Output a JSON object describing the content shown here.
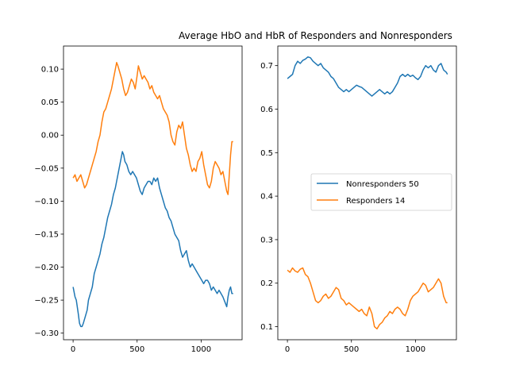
{
  "chart_data": [
    {
      "type": "line",
      "title": "",
      "xlabel": "",
      "ylabel": "",
      "xlim": [
        -75,
        1320
      ],
      "ylim": [
        -0.31,
        0.135
      ],
      "x_ticks": [
        0,
        500,
        1000
      ],
      "x_tick_labels": [
        "0",
        "500",
        "1000"
      ],
      "y_ticks": [
        -0.3,
        -0.25,
        -0.2,
        -0.15,
        -0.1,
        -0.05,
        0.0,
        0.05,
        0.1
      ],
      "y_tick_labels": [
        "−0.30",
        "−0.25",
        "−0.20",
        "−0.15",
        "−0.10",
        "−0.05",
        "0.00",
        "0.05",
        "0.10"
      ],
      "grid": false,
      "series": [
        {
          "color": "#1f77b4",
          "x": [
            0,
            15,
            25,
            40,
            50,
            60,
            70,
            80,
            95,
            110,
            120,
            135,
            150,
            165,
            180,
            195,
            210,
            225,
            240,
            255,
            270,
            285,
            300,
            315,
            330,
            345,
            360,
            375,
            385,
            395,
            405,
            420,
            435,
            450,
            465,
            480,
            495,
            510,
            525,
            540,
            555,
            570,
            585,
            600,
            615,
            630,
            645,
            660,
            675,
            690,
            705,
            720,
            735,
            750,
            765,
            780,
            795,
            810,
            825,
            840,
            855,
            870,
            885,
            900,
            915,
            930,
            945,
            960,
            975,
            990,
            1005,
            1020,
            1035,
            1050,
            1065,
            1080,
            1095,
            1110,
            1125,
            1140,
            1155,
            1170,
            1180,
            1190,
            1200,
            1210,
            1220,
            1230,
            1240,
            1250
          ],
          "y": [
            -0.23,
            -0.245,
            -0.25,
            -0.27,
            -0.285,
            -0.29,
            -0.29,
            -0.285,
            -0.275,
            -0.265,
            -0.25,
            -0.24,
            -0.23,
            -0.21,
            -0.2,
            -0.19,
            -0.18,
            -0.165,
            -0.155,
            -0.14,
            -0.125,
            -0.115,
            -0.105,
            -0.09,
            -0.08,
            -0.065,
            -0.05,
            -0.035,
            -0.025,
            -0.03,
            -0.04,
            -0.045,
            -0.055,
            -0.06,
            -0.055,
            -0.06,
            -0.065,
            -0.075,
            -0.085,
            -0.09,
            -0.08,
            -0.075,
            -0.07,
            -0.07,
            -0.075,
            -0.065,
            -0.07,
            -0.065,
            -0.08,
            -0.09,
            -0.1,
            -0.11,
            -0.115,
            -0.125,
            -0.13,
            -0.14,
            -0.15,
            -0.155,
            -0.16,
            -0.175,
            -0.185,
            -0.18,
            -0.175,
            -0.19,
            -0.2,
            -0.195,
            -0.2,
            -0.205,
            -0.21,
            -0.215,
            -0.22,
            -0.225,
            -0.22,
            -0.22,
            -0.225,
            -0.235,
            -0.23,
            -0.235,
            -0.24,
            -0.235,
            -0.24,
            -0.245,
            -0.25,
            -0.255,
            -0.26,
            -0.245,
            -0.235,
            -0.23,
            -0.24,
            -0.24
          ]
        },
        {
          "color": "#ff7f0e",
          "x": [
            0,
            15,
            30,
            45,
            60,
            75,
            90,
            105,
            120,
            135,
            150,
            165,
            180,
            195,
            210,
            225,
            240,
            255,
            270,
            285,
            300,
            315,
            330,
            340,
            350,
            365,
            380,
            395,
            410,
            425,
            440,
            455,
            470,
            485,
            500,
            510,
            525,
            540,
            555,
            570,
            585,
            600,
            615,
            630,
            645,
            660,
            675,
            690,
            705,
            720,
            735,
            750,
            765,
            780,
            795,
            810,
            825,
            840,
            855,
            870,
            885,
            900,
            915,
            930,
            945,
            960,
            975,
            990,
            1005,
            1020,
            1035,
            1050,
            1065,
            1080,
            1095,
            1110,
            1125,
            1140,
            1155,
            1170,
            1180,
            1190,
            1200,
            1210,
            1220,
            1230,
            1240,
            1250
          ],
          "y": [
            -0.065,
            -0.06,
            -0.07,
            -0.065,
            -0.06,
            -0.07,
            -0.08,
            -0.075,
            -0.065,
            -0.055,
            -0.045,
            -0.035,
            -0.025,
            -0.01,
            0.0,
            0.02,
            0.035,
            0.04,
            0.05,
            0.06,
            0.07,
            0.085,
            0.1,
            0.11,
            0.105,
            0.095,
            0.085,
            0.07,
            0.06,
            0.065,
            0.075,
            0.085,
            0.08,
            0.07,
            0.09,
            0.105,
            0.095,
            0.085,
            0.09,
            0.085,
            0.08,
            0.07,
            0.075,
            0.065,
            0.06,
            0.055,
            0.06,
            0.05,
            0.04,
            0.035,
            0.03,
            0.02,
            0.0,
            -0.01,
            -0.015,
            0.005,
            0.015,
            0.01,
            0.02,
            0.0,
            -0.02,
            -0.03,
            -0.045,
            -0.055,
            -0.05,
            -0.055,
            -0.04,
            -0.035,
            -0.025,
            -0.045,
            -0.06,
            -0.075,
            -0.08,
            -0.07,
            -0.05,
            -0.04,
            -0.045,
            -0.05,
            -0.06,
            -0.055,
            -0.065,
            -0.075,
            -0.085,
            -0.09,
            -0.06,
            -0.03,
            -0.01,
            -0.01
          ]
        }
      ]
    },
    {
      "type": "line",
      "title": "Average HbO and HbR of Responders and Nonresponders",
      "xlabel": "",
      "ylabel": "",
      "xlim": [
        -75,
        1320
      ],
      "ylim": [
        0.07,
        0.745
      ],
      "x_ticks": [
        0,
        500,
        1000
      ],
      "x_tick_labels": [
        "0",
        "500",
        "1000"
      ],
      "y_ticks": [
        0.1,
        0.2,
        0.3,
        0.4,
        0.5,
        0.6,
        0.7
      ],
      "y_tick_labels": [
        "0.1",
        "0.2",
        "0.3",
        "0.4",
        "0.5",
        "0.6",
        "0.7"
      ],
      "grid": false,
      "legend": {
        "placement": "center-right",
        "entries": [
          "Nonresponders 50",
          "Responders 14"
        ]
      },
      "series": [
        {
          "name": "Nonresponders 50",
          "color": "#1f77b4",
          "x": [
            0,
            20,
            40,
            60,
            80,
            100,
            120,
            140,
            160,
            180,
            200,
            220,
            240,
            260,
            280,
            300,
            320,
            340,
            360,
            380,
            400,
            420,
            440,
            460,
            480,
            500,
            520,
            540,
            560,
            580,
            600,
            620,
            640,
            660,
            680,
            700,
            720,
            740,
            760,
            780,
            800,
            820,
            840,
            860,
            880,
            900,
            920,
            940,
            960,
            980,
            1000,
            1020,
            1040,
            1060,
            1080,
            1100,
            1120,
            1140,
            1160,
            1180,
            1200,
            1220,
            1240,
            1250
          ],
          "y": [
            0.67,
            0.675,
            0.68,
            0.7,
            0.71,
            0.705,
            0.712,
            0.715,
            0.72,
            0.718,
            0.71,
            0.705,
            0.7,
            0.705,
            0.695,
            0.69,
            0.685,
            0.675,
            0.67,
            0.66,
            0.65,
            0.645,
            0.64,
            0.645,
            0.64,
            0.645,
            0.65,
            0.655,
            0.652,
            0.65,
            0.645,
            0.64,
            0.635,
            0.63,
            0.635,
            0.64,
            0.645,
            0.64,
            0.635,
            0.64,
            0.635,
            0.64,
            0.65,
            0.66,
            0.675,
            0.68,
            0.675,
            0.68,
            0.675,
            0.678,
            0.672,
            0.668,
            0.675,
            0.69,
            0.7,
            0.695,
            0.7,
            0.69,
            0.685,
            0.7,
            0.705,
            0.69,
            0.685,
            0.68
          ]
        },
        {
          "name": "Responders 14",
          "color": "#ff7f0e",
          "x": [
            0,
            20,
            40,
            60,
            80,
            100,
            120,
            140,
            160,
            180,
            200,
            220,
            240,
            260,
            280,
            300,
            320,
            340,
            360,
            380,
            400,
            420,
            440,
            460,
            480,
            500,
            520,
            540,
            560,
            580,
            600,
            620,
            640,
            660,
            680,
            700,
            720,
            740,
            760,
            780,
            800,
            820,
            840,
            860,
            880,
            900,
            920,
            940,
            960,
            980,
            1000,
            1020,
            1040,
            1060,
            1080,
            1100,
            1120,
            1140,
            1160,
            1180,
            1200,
            1220,
            1240,
            1250
          ],
          "y": [
            0.23,
            0.225,
            0.235,
            0.228,
            0.225,
            0.232,
            0.235,
            0.22,
            0.215,
            0.2,
            0.18,
            0.16,
            0.155,
            0.16,
            0.17,
            0.175,
            0.165,
            0.17,
            0.18,
            0.19,
            0.185,
            0.165,
            0.16,
            0.15,
            0.155,
            0.15,
            0.145,
            0.14,
            0.135,
            0.14,
            0.13,
            0.125,
            0.145,
            0.13,
            0.1,
            0.095,
            0.105,
            0.11,
            0.12,
            0.125,
            0.135,
            0.13,
            0.14,
            0.145,
            0.14,
            0.13,
            0.125,
            0.14,
            0.16,
            0.17,
            0.175,
            0.18,
            0.19,
            0.2,
            0.195,
            0.18,
            0.185,
            0.19,
            0.2,
            0.21,
            0.2,
            0.17,
            0.155,
            0.155
          ]
        }
      ]
    }
  ]
}
